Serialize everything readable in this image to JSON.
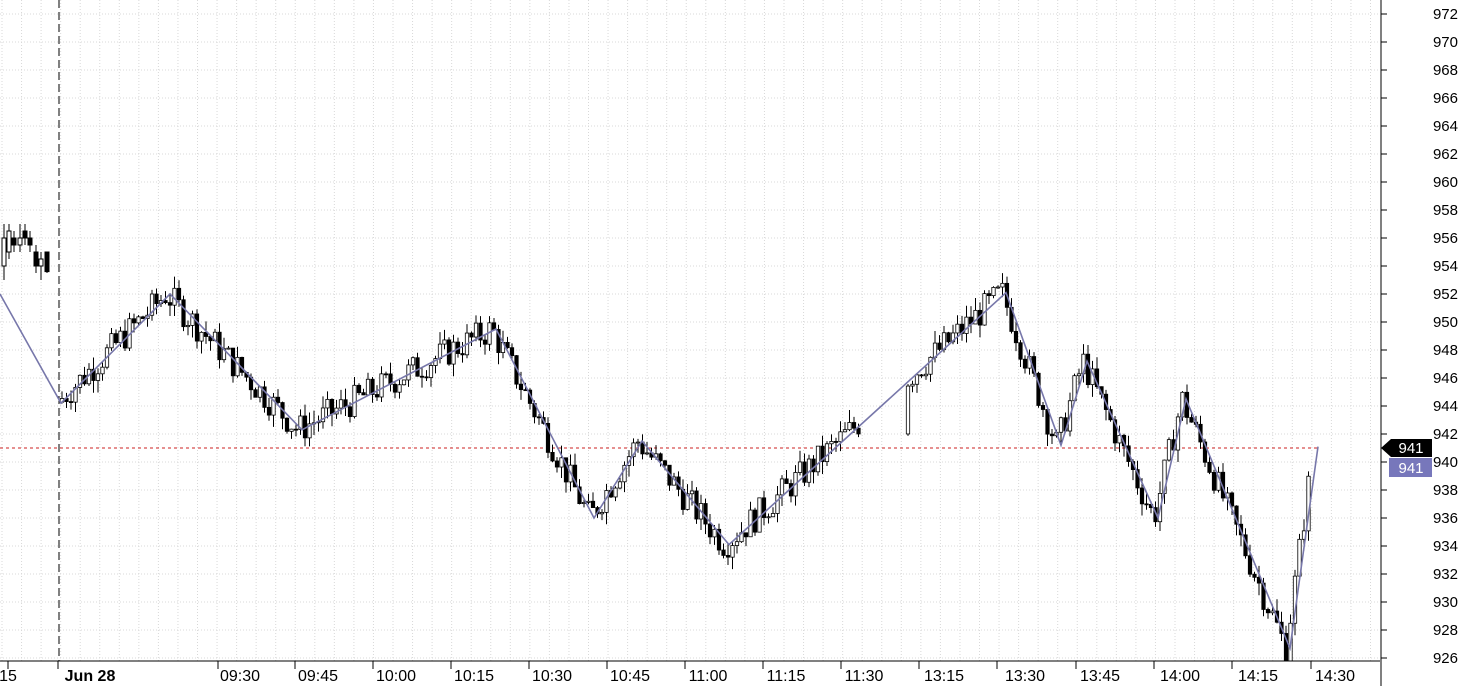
{
  "chart_data": {
    "type": "candlestick",
    "title": "",
    "xlabel": "",
    "ylabel": "",
    "ylim": [
      925,
      973
    ],
    "y_ticks": [
      "972",
      "970",
      "968",
      "966",
      "964",
      "962",
      "960",
      "958",
      "956",
      "954",
      "952",
      "950",
      "948",
      "946",
      "944",
      "942",
      "940",
      "938",
      "936",
      "934",
      "932",
      "930",
      "928",
      "926"
    ],
    "x_ticks": [
      {
        "label": "15",
        "bold": false
      },
      {
        "label": "Jun 28",
        "bold": true
      },
      {
        "label": "09:30",
        "bold": false
      },
      {
        "label": "09:45",
        "bold": false
      },
      {
        "label": "10:00",
        "bold": false
      },
      {
        "label": "10:15",
        "bold": false
      },
      {
        "label": "10:30",
        "bold": false
      },
      {
        "label": "10:45",
        "bold": false
      },
      {
        "label": "11:00",
        "bold": false
      },
      {
        "label": "11:15",
        "bold": false
      },
      {
        "label": "11:30",
        "bold": false
      },
      {
        "label": "13:15",
        "bold": false
      },
      {
        "label": "13:30",
        "bold": false
      },
      {
        "label": "13:45",
        "bold": false
      },
      {
        "label": "14:00",
        "bold": false
      },
      {
        "label": "14:15",
        "bold": false
      },
      {
        "label": "14:30",
        "bold": false
      }
    ],
    "session_break": "Jun 28",
    "reference_level": 941,
    "last_price_labels": [
      "941",
      "941"
    ],
    "zigzag_anchors": [
      {
        "x": "prev-15",
        "y": 952
      },
      {
        "x": "09:15",
        "y": 944.2
      },
      {
        "x": "09:22",
        "y": 952
      },
      {
        "x": "09:44",
        "y": 942.3
      },
      {
        "x": "10:20",
        "y": 949.5
      },
      {
        "x": "10:38",
        "y": 936
      },
      {
        "x": "10:46",
        "y": 941.5
      },
      {
        "x": "11:03",
        "y": 934.1
      },
      {
        "x": "13:30",
        "y": 952.1
      },
      {
        "x": "13:38",
        "y": 941.2
      },
      {
        "x": "13:43",
        "y": 947.2
      },
      {
        "x": "13:59",
        "y": 936
      },
      {
        "x": "14:05",
        "y": 944.5
      },
      {
        "x": "14:24",
        "y": 926.7
      },
      {
        "x": "14:30",
        "y": 941.1
      }
    ],
    "candle_colors": {
      "up": "#ffffff",
      "down": "#000000",
      "outline": "#000000"
    },
    "zigzag_color": "#7777aa",
    "reference_line_color": "#cc2222",
    "grid": true,
    "grid_color": "#d8d8d8"
  }
}
